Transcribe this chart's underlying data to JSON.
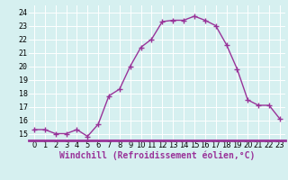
{
  "x": [
    0,
    1,
    2,
    3,
    4,
    5,
    6,
    7,
    8,
    9,
    10,
    11,
    12,
    13,
    14,
    15,
    16,
    17,
    18,
    19,
    20,
    21,
    22,
    23
  ],
  "y": [
    15.3,
    15.3,
    15.0,
    15.0,
    15.3,
    14.8,
    15.7,
    17.8,
    18.3,
    20.0,
    21.4,
    22.0,
    23.3,
    23.4,
    23.4,
    23.7,
    23.4,
    23.0,
    21.6,
    19.8,
    17.5,
    17.1,
    17.1,
    16.1
  ],
  "line_color": "#993399",
  "marker": "+",
  "marker_size": 4,
  "marker_linewidth": 1.0,
  "xlim": [
    -0.5,
    23.5
  ],
  "ylim": [
    14.5,
    24.5
  ],
  "yticks": [
    15,
    16,
    17,
    18,
    19,
    20,
    21,
    22,
    23,
    24
  ],
  "xticks": [
    0,
    1,
    2,
    3,
    4,
    5,
    6,
    7,
    8,
    9,
    10,
    11,
    12,
    13,
    14,
    15,
    16,
    17,
    18,
    19,
    20,
    21,
    22,
    23
  ],
  "xlabel": "Windchill (Refroidissement éolien,°C)",
  "background_color": "#d6f0f0",
  "grid_color": "#ffffff",
  "line_width": 1.0,
  "xlabel_color": "#993399",
  "xlabel_fontsize": 7,
  "tick_fontsize": 6,
  "tick_color": "#000000",
  "separator_color": "#993399",
  "separator_linewidth": 2.0
}
